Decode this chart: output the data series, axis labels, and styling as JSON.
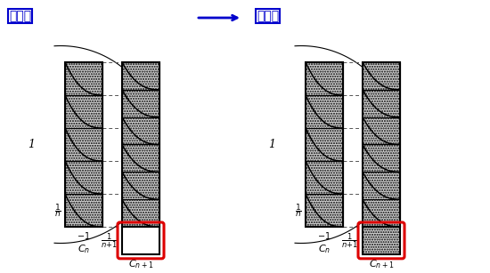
{
  "title_wrong": "【誤】",
  "title_correct": "【正】",
  "bg_color": "#ffffff",
  "red_box_color": "#dd0000",
  "blue_color": "#0000cc",
  "n_strips": 5,
  "fig_width": 5.5,
  "fig_height": 3.07,
  "hatch_style": "..",
  "hatch_color": "#888888",
  "bar_face": "#d0d0d0",
  "strip_lw": 0.8,
  "bar_lw": 1.5
}
